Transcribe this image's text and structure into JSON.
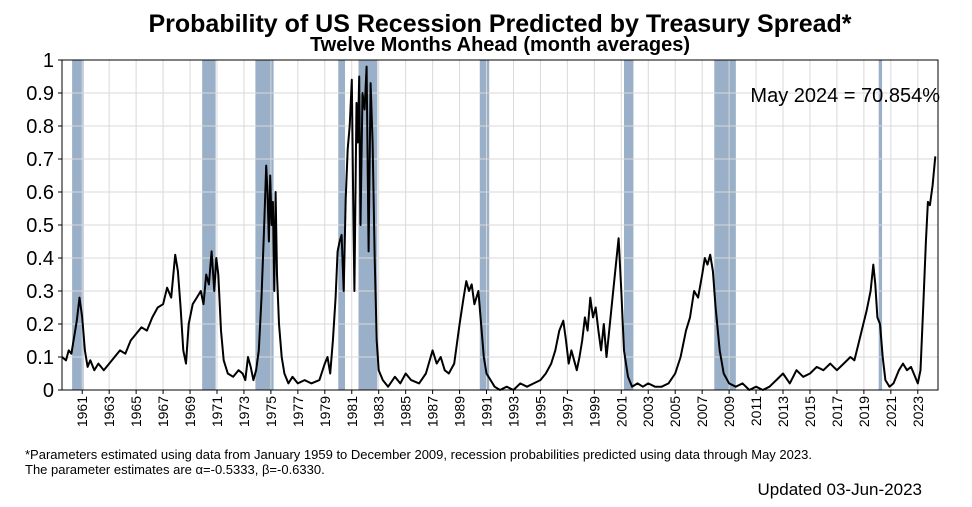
{
  "chart_data": {
    "type": "line",
    "title": "Probability of US Recession Predicted by Treasury Spread*",
    "subtitle": "Twelve Months Ahead (month averages)",
    "annotation": "May 2024 = 70.854%",
    "xlim": [
      1959.5,
      2024.5
    ],
    "ylim": [
      0,
      1
    ],
    "yticks": [
      0,
      0.1,
      0.2,
      0.3,
      0.4,
      0.5,
      0.6,
      0.7,
      0.8,
      0.9,
      1
    ],
    "ytick_labels": [
      "0",
      "0.1",
      "0.2",
      "0.3",
      "0.4",
      "0.5",
      "0.6",
      "0.7",
      "0.8",
      "0.9",
      "1"
    ],
    "xtick_labels": [
      "1961",
      "1963",
      "1965",
      "1967",
      "1969",
      "1971",
      "1973",
      "1975",
      "1977",
      "1979",
      "1981",
      "1983",
      "1985",
      "1987",
      "1989",
      "1991",
      "1993",
      "1995",
      "1997",
      "1999",
      "2001",
      "2003",
      "2005",
      "2007",
      "2009",
      "2011",
      "2013",
      "2015",
      "2017",
      "2019",
      "2021",
      "2023"
    ],
    "grid": true,
    "recession_color": "#9ab0c8",
    "line_color": "#000000",
    "recessions": [
      [
        1960.25,
        1961.1
      ],
      [
        1969.9,
        1970.9
      ],
      [
        1973.85,
        1975.2
      ],
      [
        1980.0,
        1980.5
      ],
      [
        1981.5,
        1982.9
      ],
      [
        1990.5,
        1991.2
      ],
      [
        2001.2,
        2001.9
      ],
      [
        2007.9,
        2009.5
      ],
      [
        2020.1,
        2020.35
      ]
    ],
    "series": [
      {
        "values": [
          [
            1959.5,
            0.1
          ],
          [
            1959.8,
            0.09
          ],
          [
            1960.0,
            0.12
          ],
          [
            1960.2,
            0.11
          ],
          [
            1960.4,
            0.16
          ],
          [
            1960.6,
            0.21
          ],
          [
            1960.8,
            0.28
          ],
          [
            1961.0,
            0.22
          ],
          [
            1961.2,
            0.12
          ],
          [
            1961.4,
            0.07
          ],
          [
            1961.6,
            0.09
          ],
          [
            1961.9,
            0.06
          ],
          [
            1962.2,
            0.08
          ],
          [
            1962.6,
            0.06
          ],
          [
            1963.0,
            0.08
          ],
          [
            1963.4,
            0.1
          ],
          [
            1963.8,
            0.12
          ],
          [
            1964.2,
            0.11
          ],
          [
            1964.6,
            0.15
          ],
          [
            1965.0,
            0.17
          ],
          [
            1965.4,
            0.19
          ],
          [
            1965.8,
            0.18
          ],
          [
            1966.2,
            0.22
          ],
          [
            1966.6,
            0.25
          ],
          [
            1967.0,
            0.26
          ],
          [
            1967.3,
            0.31
          ],
          [
            1967.6,
            0.28
          ],
          [
            1967.9,
            0.41
          ],
          [
            1968.1,
            0.36
          ],
          [
            1968.3,
            0.25
          ],
          [
            1968.5,
            0.12
          ],
          [
            1968.7,
            0.08
          ],
          [
            1968.9,
            0.2
          ],
          [
            1969.2,
            0.26
          ],
          [
            1969.5,
            0.28
          ],
          [
            1969.8,
            0.3
          ],
          [
            1970.0,
            0.26
          ],
          [
            1970.2,
            0.35
          ],
          [
            1970.4,
            0.32
          ],
          [
            1970.6,
            0.42
          ],
          [
            1970.8,
            0.3
          ],
          [
            1970.95,
            0.4
          ],
          [
            1971.1,
            0.35
          ],
          [
            1971.3,
            0.18
          ],
          [
            1971.5,
            0.09
          ],
          [
            1971.8,
            0.05
          ],
          [
            1972.2,
            0.04
          ],
          [
            1972.6,
            0.06
          ],
          [
            1972.9,
            0.05
          ],
          [
            1973.1,
            0.03
          ],
          [
            1973.3,
            0.1
          ],
          [
            1973.5,
            0.07
          ],
          [
            1973.7,
            0.03
          ],
          [
            1973.9,
            0.06
          ],
          [
            1974.1,
            0.12
          ],
          [
            1974.3,
            0.28
          ],
          [
            1974.5,
            0.5
          ],
          [
            1974.65,
            0.68
          ],
          [
            1974.75,
            0.6
          ],
          [
            1974.85,
            0.45
          ],
          [
            1974.95,
            0.65
          ],
          [
            1975.05,
            0.5
          ],
          [
            1975.15,
            0.57
          ],
          [
            1975.25,
            0.3
          ],
          [
            1975.35,
            0.6
          ],
          [
            1975.45,
            0.35
          ],
          [
            1975.6,
            0.2
          ],
          [
            1975.8,
            0.1
          ],
          [
            1976.0,
            0.05
          ],
          [
            1976.3,
            0.02
          ],
          [
            1976.6,
            0.04
          ],
          [
            1977.0,
            0.02
          ],
          [
            1977.5,
            0.03
          ],
          [
            1978.0,
            0.02
          ],
          [
            1978.6,
            0.03
          ],
          [
            1979.0,
            0.08
          ],
          [
            1979.2,
            0.1
          ],
          [
            1979.4,
            0.05
          ],
          [
            1979.6,
            0.15
          ],
          [
            1979.8,
            0.28
          ],
          [
            1979.95,
            0.42
          ],
          [
            1980.1,
            0.45
          ],
          [
            1980.25,
            0.47
          ],
          [
            1980.4,
            0.3
          ],
          [
            1980.55,
            0.58
          ],
          [
            1980.7,
            0.73
          ],
          [
            1980.85,
            0.8
          ],
          [
            1981.0,
            0.94
          ],
          [
            1981.1,
            0.6
          ],
          [
            1981.2,
            0.3
          ],
          [
            1981.35,
            0.87
          ],
          [
            1981.45,
            0.75
          ],
          [
            1981.55,
            0.95
          ],
          [
            1981.65,
            0.5
          ],
          [
            1981.8,
            0.9
          ],
          [
            1981.95,
            0.85
          ],
          [
            1982.1,
            0.98
          ],
          [
            1982.25,
            0.42
          ],
          [
            1982.4,
            0.93
          ],
          [
            1982.55,
            0.75
          ],
          [
            1982.7,
            0.4
          ],
          [
            1982.85,
            0.15
          ],
          [
            1983.0,
            0.06
          ],
          [
            1983.3,
            0.03
          ],
          [
            1983.7,
            0.01
          ],
          [
            1984.2,
            0.04
          ],
          [
            1984.6,
            0.02
          ],
          [
            1985.0,
            0.05
          ],
          [
            1985.4,
            0.03
          ],
          [
            1986.0,
            0.02
          ],
          [
            1986.5,
            0.05
          ],
          [
            1987.0,
            0.12
          ],
          [
            1987.3,
            0.08
          ],
          [
            1987.6,
            0.1
          ],
          [
            1987.9,
            0.06
          ],
          [
            1988.2,
            0.05
          ],
          [
            1988.6,
            0.08
          ],
          [
            1989.0,
            0.2
          ],
          [
            1989.3,
            0.28
          ],
          [
            1989.5,
            0.33
          ],
          [
            1989.7,
            0.3
          ],
          [
            1989.9,
            0.32
          ],
          [
            1990.1,
            0.26
          ],
          [
            1990.4,
            0.3
          ],
          [
            1990.6,
            0.2
          ],
          [
            1990.8,
            0.1
          ],
          [
            1991.0,
            0.05
          ],
          [
            1991.3,
            0.03
          ],
          [
            1991.6,
            0.01
          ],
          [
            1992.0,
            0.0
          ],
          [
            1992.5,
            0.01
          ],
          [
            1993.0,
            0.0
          ],
          [
            1993.5,
            0.02
          ],
          [
            1994.0,
            0.01
          ],
          [
            1994.5,
            0.02
          ],
          [
            1995.0,
            0.03
          ],
          [
            1995.4,
            0.05
          ],
          [
            1995.8,
            0.08
          ],
          [
            1996.1,
            0.12
          ],
          [
            1996.4,
            0.18
          ],
          [
            1996.7,
            0.21
          ],
          [
            1996.9,
            0.15
          ],
          [
            1997.1,
            0.08
          ],
          [
            1997.3,
            0.12
          ],
          [
            1997.5,
            0.09
          ],
          [
            1997.7,
            0.06
          ],
          [
            1997.9,
            0.1
          ],
          [
            1998.1,
            0.15
          ],
          [
            1998.3,
            0.22
          ],
          [
            1998.5,
            0.18
          ],
          [
            1998.7,
            0.28
          ],
          [
            1998.9,
            0.22
          ],
          [
            1999.1,
            0.25
          ],
          [
            1999.3,
            0.18
          ],
          [
            1999.5,
            0.12
          ],
          [
            1999.7,
            0.2
          ],
          [
            1999.9,
            0.1
          ],
          [
            2000.1,
            0.18
          ],
          [
            2000.4,
            0.3
          ],
          [
            2000.6,
            0.38
          ],
          [
            2000.8,
            0.46
          ],
          [
            2001.0,
            0.3
          ],
          [
            2001.2,
            0.12
          ],
          [
            2001.5,
            0.04
          ],
          [
            2001.8,
            0.01
          ],
          [
            2002.2,
            0.02
          ],
          [
            2002.6,
            0.01
          ],
          [
            2003.0,
            0.02
          ],
          [
            2003.5,
            0.01
          ],
          [
            2004.0,
            0.01
          ],
          [
            2004.5,
            0.02
          ],
          [
            2005.0,
            0.05
          ],
          [
            2005.4,
            0.1
          ],
          [
            2005.8,
            0.18
          ],
          [
            2006.1,
            0.22
          ],
          [
            2006.4,
            0.3
          ],
          [
            2006.7,
            0.28
          ],
          [
            2007.0,
            0.35
          ],
          [
            2007.2,
            0.4
          ],
          [
            2007.4,
            0.38
          ],
          [
            2007.6,
            0.41
          ],
          [
            2007.8,
            0.36
          ],
          [
            2008.0,
            0.25
          ],
          [
            2008.3,
            0.12
          ],
          [
            2008.6,
            0.05
          ],
          [
            2009.0,
            0.02
          ],
          [
            2009.5,
            0.01
          ],
          [
            2010.0,
            0.02
          ],
          [
            2010.5,
            0.0
          ],
          [
            2011.0,
            0.01
          ],
          [
            2011.5,
            0.0
          ],
          [
            2012.0,
            0.01
          ],
          [
            2012.5,
            0.03
          ],
          [
            2013.0,
            0.05
          ],
          [
            2013.5,
            0.02
          ],
          [
            2014.0,
            0.06
          ],
          [
            2014.5,
            0.04
          ],
          [
            2015.0,
            0.05
          ],
          [
            2015.5,
            0.07
          ],
          [
            2016.0,
            0.06
          ],
          [
            2016.5,
            0.08
          ],
          [
            2017.0,
            0.06
          ],
          [
            2017.5,
            0.08
          ],
          [
            2018.0,
            0.1
          ],
          [
            2018.3,
            0.09
          ],
          [
            2018.6,
            0.14
          ],
          [
            2018.9,
            0.19
          ],
          [
            2019.2,
            0.24
          ],
          [
            2019.5,
            0.3
          ],
          [
            2019.7,
            0.38
          ],
          [
            2019.85,
            0.32
          ],
          [
            2020.0,
            0.22
          ],
          [
            2020.2,
            0.2
          ],
          [
            2020.4,
            0.1
          ],
          [
            2020.6,
            0.03
          ],
          [
            2020.9,
            0.01
          ],
          [
            2021.2,
            0.02
          ],
          [
            2021.6,
            0.06
          ],
          [
            2021.9,
            0.08
          ],
          [
            2022.2,
            0.06
          ],
          [
            2022.5,
            0.07
          ],
          [
            2022.8,
            0.04
          ],
          [
            2023.0,
            0.02
          ],
          [
            2023.2,
            0.06
          ],
          [
            2023.4,
            0.25
          ],
          [
            2023.6,
            0.45
          ],
          [
            2023.75,
            0.57
          ],
          [
            2023.9,
            0.56
          ],
          [
            2024.1,
            0.62
          ],
          [
            2024.3,
            0.708
          ]
        ]
      }
    ]
  },
  "footnote_line1": "*Parameters estimated using data from January 1959 to December 2009, recession probabilities predicted using data through May 2023.",
  "footnote_line2": "The parameter estimates are α=-0.5333, β=-0.6330.",
  "updated": "Updated 03-Jun-2023"
}
